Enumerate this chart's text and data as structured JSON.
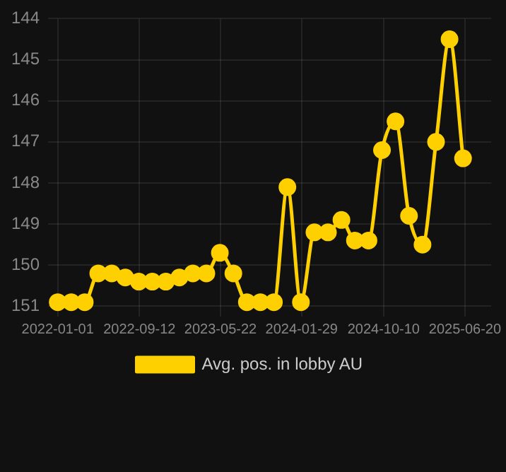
{
  "chart_data": {
    "type": "line",
    "x": [
      "2022-01-01",
      "2022-02-12",
      "2022-03-26",
      "2022-05-07",
      "2022-06-18",
      "2022-07-30",
      "2022-09-10",
      "2022-10-22",
      "2022-12-03",
      "2023-01-14",
      "2023-02-25",
      "2023-04-08",
      "2023-05-20",
      "2023-07-01",
      "2023-08-12",
      "2023-09-23",
      "2023-11-04",
      "2023-12-16",
      "2024-01-27",
      "2024-03-09",
      "2024-04-20",
      "2024-06-01",
      "2024-07-13",
      "2024-08-24",
      "2024-10-05",
      "2024-11-16",
      "2024-12-28",
      "2025-02-08",
      "2025-03-22",
      "2025-05-03",
      "2025-06-14"
    ],
    "series": [
      {
        "name": "Avg. pos. in lobby AU",
        "color": "#ffd000",
        "values": [
          150.9,
          150.9,
          150.9,
          150.2,
          150.2,
          150.3,
          150.4,
          150.4,
          150.4,
          150.3,
          150.2,
          150.2,
          149.7,
          150.2,
          150.9,
          150.9,
          150.9,
          148.1,
          150.9,
          149.2,
          149.2,
          148.9,
          149.4,
          149.4,
          147.2,
          146.5,
          148.8,
          149.5,
          147.0,
          144.5,
          147.4
        ]
      }
    ],
    "xlim": [
      "2021-12-02",
      "2025-09-10"
    ],
    "xticks": [
      "2022-01-01",
      "2022-09-12",
      "2023-05-22",
      "2024-01-29",
      "2024-10-10",
      "2025-06-20"
    ],
    "ylim": [
      151.25,
      144
    ],
    "yticks": [
      144,
      145,
      146,
      147,
      148,
      149,
      150,
      151
    ],
    "grid": true,
    "legend": "bottom",
    "marker": "circle",
    "line_style": "solid"
  }
}
